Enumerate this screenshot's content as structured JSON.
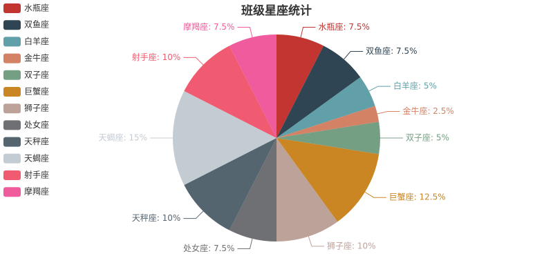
{
  "chart_data": {
    "type": "pie",
    "title": "班级星座统计",
    "categories": [
      "水瓶座",
      "双鱼座",
      "白羊座",
      "金牛座",
      "双子座",
      "巨蟹座",
      "狮子座",
      "处女座",
      "天秤座",
      "天蝎座",
      "射手座",
      "摩羯座"
    ],
    "values": [
      7.5,
      7.5,
      5,
      2.5,
      5,
      12.5,
      10,
      7.5,
      10,
      15,
      10,
      7.5
    ],
    "value_labels": [
      "水瓶座: 7.5%",
      "双鱼座: 7.5%",
      "白羊座: 5%",
      "金牛座: 2.5%",
      "双子座: 5%",
      "巨蟹座: 12.5%",
      "狮子座: 10%",
      "处女座: 7.5%",
      "天秤座: 10%",
      "天蝎座: 15%",
      "射手座: 10%",
      "摩羯座: 7.5%"
    ],
    "colors": [
      "#c23531",
      "#2f4554",
      "#61a0a8",
      "#d48265",
      "#749f83",
      "#ca8622",
      "#bda29a",
      "#6e7074",
      "#546570",
      "#c4ccd3",
      "#f05b72",
      "#ef5b9c"
    ],
    "legend": "top-left"
  }
}
